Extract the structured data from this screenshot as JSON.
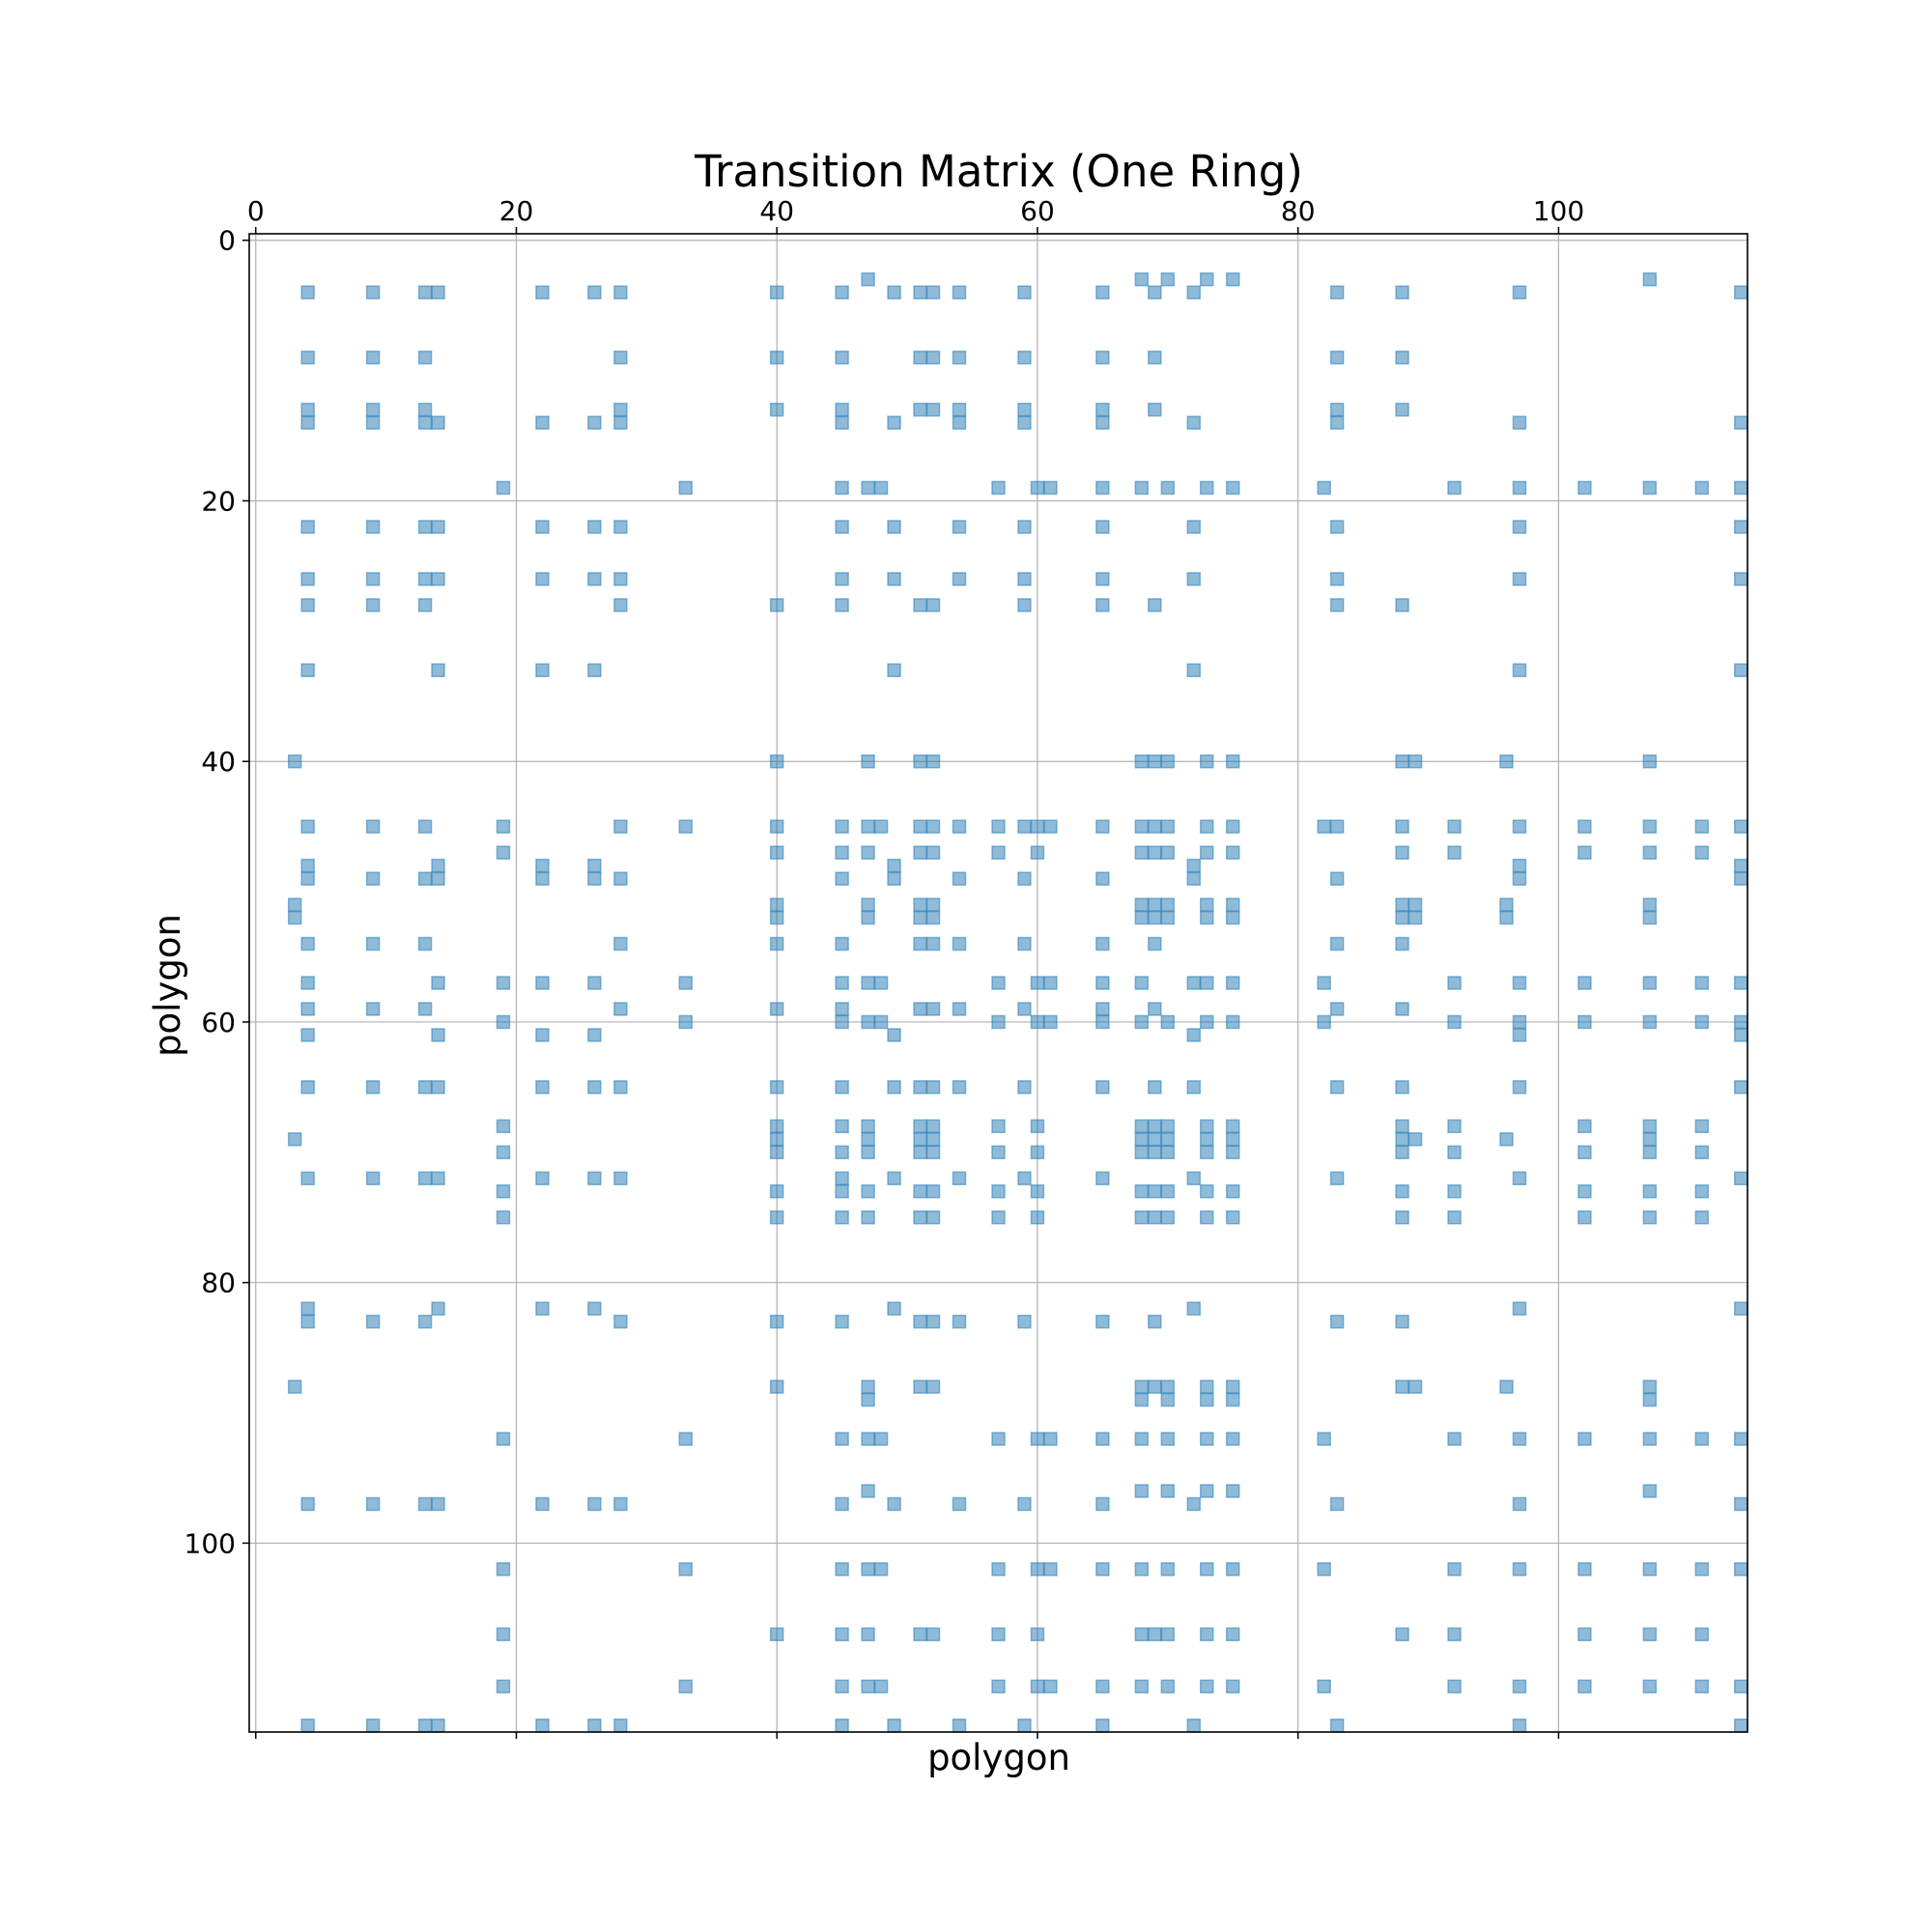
{
  "chart_data": {
    "type": "scatter",
    "title": "Transition Matrix (One Ring)",
    "xlabel": "polygon",
    "ylabel": "polygon",
    "xlim": [
      -0.5,
      114.5
    ],
    "ylim": [
      114.5,
      -0.5
    ],
    "x_ticks": [
      0,
      20,
      40,
      60,
      80,
      100
    ],
    "y_ticks": [
      0,
      20,
      40,
      60,
      80,
      100
    ],
    "x_tick_position": "top",
    "grid": true,
    "marker": "square",
    "color": "#1f77b4",
    "alpha": 0.5,
    "rows": [
      {
        "y": 3,
        "x": [
          47,
          68,
          70,
          73,
          75,
          107
        ]
      },
      {
        "y": 4,
        "x": [
          4,
          9,
          13,
          14,
          22,
          26,
          28,
          40,
          45,
          49,
          51,
          52,
          54,
          59,
          65,
          69,
          72,
          83,
          88,
          97,
          114
        ]
      },
      {
        "y": 9,
        "x": [
          4,
          9,
          13,
          28,
          40,
          45,
          51,
          52,
          54,
          59,
          65,
          69,
          83,
          88
        ]
      },
      {
        "y": 13,
        "x": [
          4,
          9,
          13,
          28,
          40,
          45,
          51,
          52,
          54,
          59,
          65,
          69,
          83,
          88
        ]
      },
      {
        "y": 14,
        "x": [
          4,
          9,
          13,
          14,
          22,
          26,
          28,
          45,
          49,
          54,
          59,
          65,
          72,
          83,
          97,
          114
        ]
      },
      {
        "y": 19,
        "x": [
          19,
          33,
          45,
          47,
          48,
          57,
          60,
          61,
          65,
          68,
          70,
          73,
          75,
          82,
          92,
          97,
          102,
          107,
          111,
          114
        ]
      },
      {
        "y": 22,
        "x": [
          4,
          9,
          13,
          14,
          22,
          26,
          28,
          45,
          49,
          54,
          59,
          65,
          72,
          83,
          97,
          114
        ]
      },
      {
        "y": 26,
        "x": [
          4,
          9,
          13,
          14,
          22,
          26,
          28,
          45,
          49,
          54,
          59,
          65,
          72,
          83,
          97,
          114
        ]
      },
      {
        "y": 28,
        "x": [
          4,
          9,
          13,
          28,
          40,
          45,
          51,
          52,
          59,
          65,
          69,
          83,
          88
        ]
      },
      {
        "y": 33,
        "x": [
          4,
          14,
          22,
          26,
          49,
          72,
          97,
          114
        ]
      },
      {
        "y": 40,
        "x": [
          3,
          40,
          47,
          51,
          52,
          68,
          69,
          70,
          73,
          75,
          88,
          89,
          96,
          107
        ]
      },
      {
        "y": 45,
        "x": [
          4,
          9,
          13,
          19,
          28,
          33,
          40,
          45,
          47,
          48,
          51,
          52,
          54,
          57,
          59,
          60,
          61,
          65,
          68,
          69,
          70,
          73,
          75,
          82,
          83,
          88,
          92,
          97,
          102,
          107,
          111,
          114
        ]
      },
      {
        "y": 47,
        "x": [
          19,
          40,
          45,
          47,
          51,
          52,
          57,
          60,
          68,
          69,
          70,
          73,
          75,
          88,
          92,
          102,
          107,
          111
        ]
      },
      {
        "y": 48,
        "x": [
          4,
          14,
          22,
          26,
          49,
          72,
          97,
          114
        ]
      },
      {
        "y": 49,
        "x": [
          4,
          9,
          13,
          14,
          22,
          26,
          28,
          45,
          49,
          54,
          59,
          65,
          72,
          83,
          97,
          114
        ]
      },
      {
        "y": 51,
        "x": [
          3,
          40,
          47,
          51,
          52,
          68,
          69,
          70,
          73,
          75,
          88,
          89,
          96,
          107
        ]
      },
      {
        "y": 52,
        "x": [
          3,
          40,
          47,
          51,
          52,
          68,
          69,
          70,
          73,
          75,
          88,
          89,
          96,
          107
        ]
      },
      {
        "y": 54,
        "x": [
          4,
          9,
          13,
          28,
          40,
          45,
          51,
          52,
          54,
          59,
          65,
          69,
          83,
          88
        ]
      },
      {
        "y": 57,
        "x": [
          4,
          14,
          19,
          22,
          26,
          33,
          45,
          47,
          48,
          57,
          60,
          61,
          65,
          68,
          72,
          73,
          75,
          82,
          92,
          97,
          102,
          107,
          111,
          114
        ]
      },
      {
        "y": 59,
        "x": [
          4,
          9,
          13,
          28,
          40,
          45,
          51,
          52,
          54,
          59,
          65,
          69,
          83,
          88
        ]
      },
      {
        "y": 60,
        "x": [
          19,
          33,
          45,
          47,
          48,
          57,
          60,
          61,
          65,
          68,
          70,
          73,
          75,
          82,
          92,
          97,
          102,
          107,
          111,
          114
        ]
      },
      {
        "y": 61,
        "x": [
          4,
          14,
          22,
          26,
          49,
          72,
          97,
          114
        ]
      },
      {
        "y": 65,
        "x": [
          4,
          9,
          13,
          14,
          22,
          26,
          28,
          40,
          45,
          49,
          51,
          52,
          54,
          59,
          65,
          69,
          72,
          83,
          88,
          97,
          114
        ]
      },
      {
        "y": 68,
        "x": [
          19,
          40,
          45,
          47,
          51,
          52,
          57,
          60,
          68,
          69,
          70,
          73,
          75,
          88,
          92,
          102,
          107,
          111
        ]
      },
      {
        "y": 69,
        "x": [
          3,
          40,
          47,
          51,
          52,
          68,
          69,
          70,
          73,
          75,
          88,
          89,
          96,
          107
        ]
      },
      {
        "y": 70,
        "x": [
          19,
          40,
          45,
          47,
          51,
          52,
          57,
          60,
          68,
          69,
          70,
          73,
          75,
          88,
          92,
          102,
          107,
          111
        ]
      },
      {
        "y": 72,
        "x": [
          4,
          9,
          13,
          14,
          22,
          26,
          28,
          45,
          49,
          54,
          59,
          65,
          72,
          83,
          97,
          114
        ]
      },
      {
        "y": 73,
        "x": [
          19,
          40,
          45,
          47,
          51,
          52,
          57,
          60,
          68,
          69,
          70,
          73,
          75,
          88,
          92,
          102,
          107,
          111
        ]
      },
      {
        "y": 75,
        "x": [
          19,
          40,
          45,
          47,
          51,
          52,
          57,
          60,
          68,
          69,
          70,
          73,
          75,
          88,
          92,
          102,
          107,
          111
        ]
      },
      {
        "y": 82,
        "x": [
          4,
          14,
          22,
          26,
          49,
          72,
          97,
          114
        ]
      },
      {
        "y": 83,
        "x": [
          4,
          9,
          13,
          28,
          40,
          45,
          51,
          52,
          54,
          59,
          65,
          69,
          83,
          88
        ]
      },
      {
        "y": 88,
        "x": [
          3,
          40,
          47,
          51,
          52,
          68,
          69,
          70,
          73,
          75,
          88,
          89,
          96,
          107
        ]
      },
      {
        "y": 89,
        "x": [
          47,
          68,
          70,
          73,
          75,
          107
        ]
      },
      {
        "y": 92,
        "x": [
          19,
          33,
          45,
          47,
          48,
          57,
          60,
          61,
          65,
          68,
          70,
          73,
          75,
          82,
          92,
          97,
          102,
          107,
          111,
          114
        ]
      },
      {
        "y": 96,
        "x": [
          47,
          68,
          70,
          73,
          75,
          107
        ]
      },
      {
        "y": 97,
        "x": [
          4,
          9,
          13,
          14,
          22,
          26,
          28,
          45,
          49,
          54,
          59,
          65,
          72,
          83,
          97,
          114
        ]
      },
      {
        "y": 102,
        "x": [
          19,
          33,
          45,
          47,
          48,
          57,
          60,
          61,
          65,
          68,
          70,
          73,
          75,
          82,
          92,
          97,
          102,
          107,
          111,
          114
        ]
      },
      {
        "y": 107,
        "x": [
          19,
          40,
          45,
          47,
          51,
          52,
          57,
          60,
          68,
          69,
          70,
          73,
          75,
          88,
          92,
          102,
          107,
          111
        ]
      },
      {
        "y": 111,
        "x": [
          19,
          33,
          45,
          47,
          48,
          57,
          60,
          61,
          65,
          68,
          70,
          73,
          75,
          82,
          92,
          97,
          102,
          107,
          111,
          114
        ]
      },
      {
        "y": 114,
        "x": [
          4,
          9,
          13,
          14,
          22,
          26,
          28,
          45,
          49,
          54,
          59,
          65,
          72,
          83,
          97,
          114
        ]
      }
    ]
  }
}
